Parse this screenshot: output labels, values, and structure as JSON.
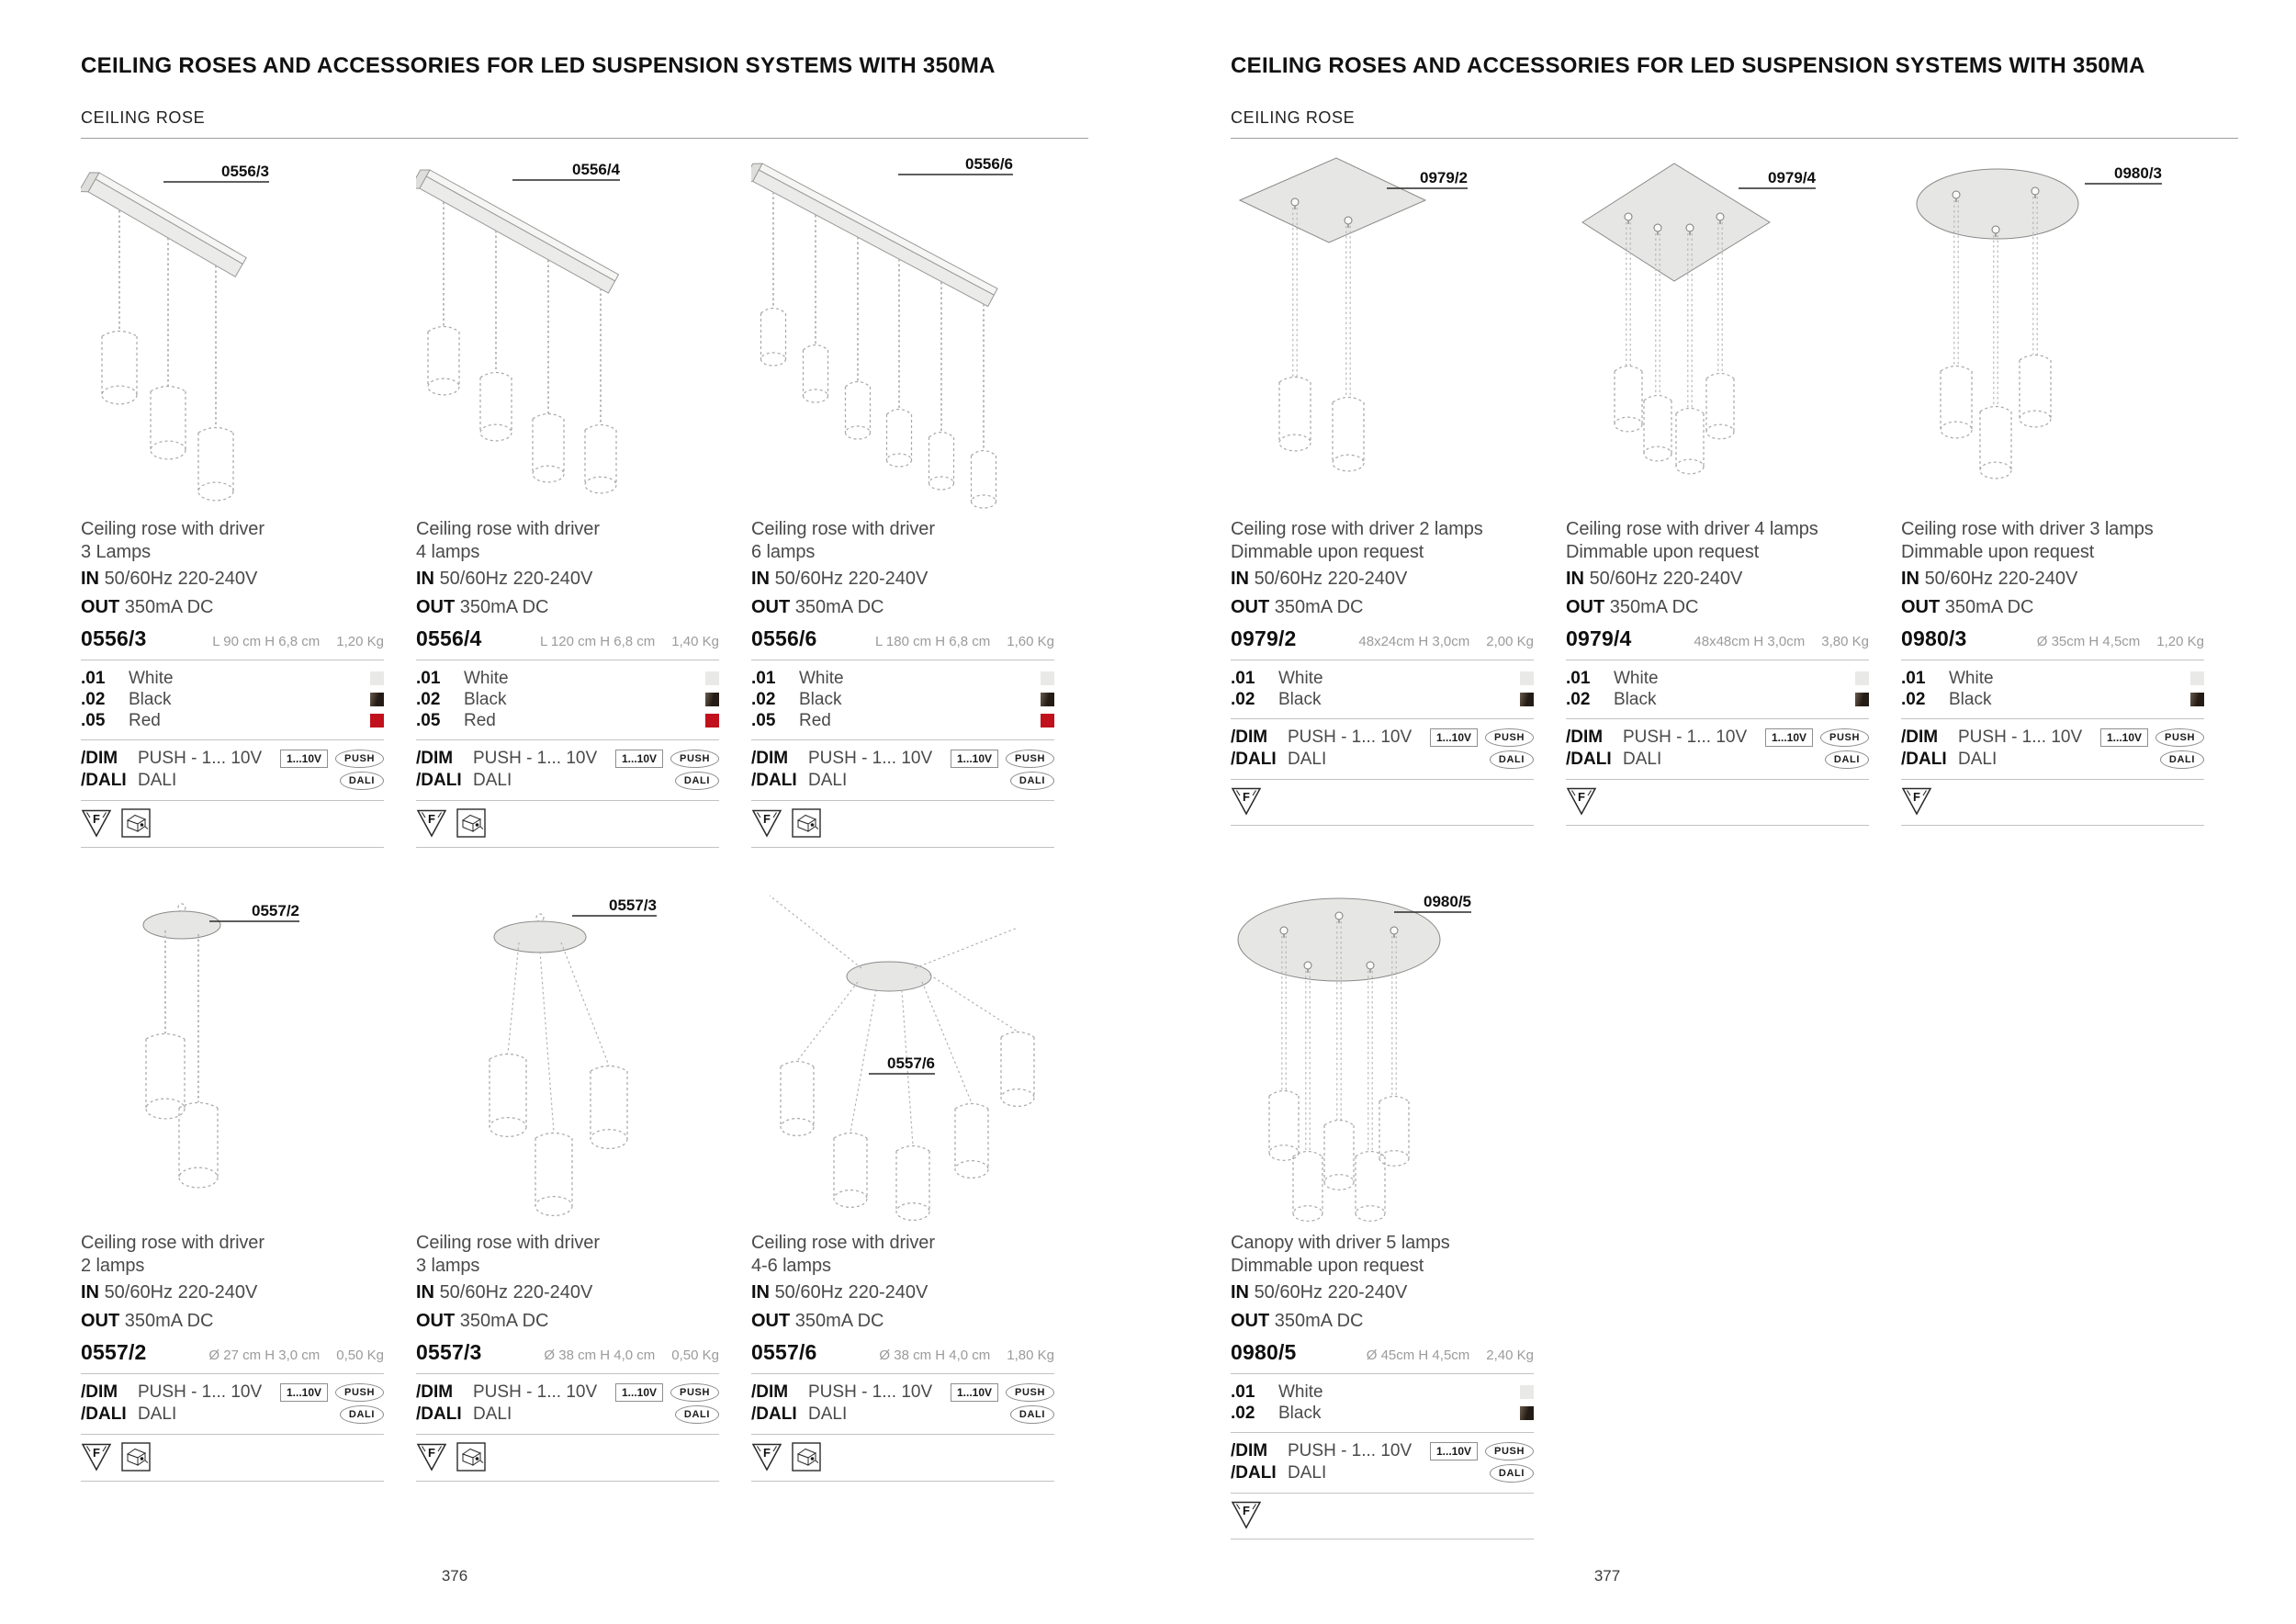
{
  "pages": [
    {
      "title": "CEILING ROSES AND ACCESSORIES FOR LED SUSPENSION SYSTEMS WITH 350MA",
      "section": "CEILING ROSE",
      "page_number": "376",
      "products": [
        {
          "code": "0556/3",
          "description": [
            "Ceiling rose with driver",
            "3 Lamps"
          ],
          "input": {
            "label": "IN",
            "value": "50/60Hz 220-240V"
          },
          "output": {
            "label": "OUT",
            "value": "350mA DC"
          },
          "dimensions": "L 90 cm H 6,8 cm",
          "weight": "1,20 Kg",
          "finishes": [
            {
              "code": ".01",
              "name": "White",
              "swatch": "#e9e9e7"
            },
            {
              "code": ".02",
              "name": "Black",
              "swatch": "#2b221b"
            },
            {
              "code": ".05",
              "name": "Red",
              "swatch": "#c1111d"
            }
          ],
          "options": [
            {
              "code": "/DIM",
              "name": "PUSH - 1... 10V",
              "badges": [
                "1...10V",
                "PUSH"
              ]
            },
            {
              "code": "/DALI",
              "name": "DALI",
              "badges": [
                "DALI"
              ]
            }
          ],
          "cert_icons": [
            "f-triangle",
            "driver-box"
          ],
          "illustration": "bar-3"
        },
        {
          "code": "0556/4",
          "description": [
            "Ceiling rose with driver",
            "4 lamps"
          ],
          "input": {
            "label": "IN",
            "value": "50/60Hz 220-240V"
          },
          "output": {
            "label": "OUT",
            "value": "350mA DC"
          },
          "dimensions": "L 120 cm H 6,8 cm",
          "weight": "1,40 Kg",
          "finishes": [
            {
              "code": ".01",
              "name": "White",
              "swatch": "#e9e9e7"
            },
            {
              "code": ".02",
              "name": "Black",
              "swatch": "#2b221b"
            },
            {
              "code": ".05",
              "name": "Red",
              "swatch": "#c1111d"
            }
          ],
          "options": [
            {
              "code": "/DIM",
              "name": "PUSH - 1... 10V",
              "badges": [
                "1...10V",
                "PUSH"
              ]
            },
            {
              "code": "/DALI",
              "name": "DALI",
              "badges": [
                "DALI"
              ]
            }
          ],
          "cert_icons": [
            "f-triangle",
            "driver-box"
          ],
          "illustration": "bar-4"
        },
        {
          "code": "0556/6",
          "description": [
            "Ceiling rose with driver",
            "6 lamps"
          ],
          "input": {
            "label": "IN",
            "value": "50/60Hz 220-240V"
          },
          "output": {
            "label": "OUT",
            "value": "350mA DC"
          },
          "dimensions": "L 180 cm H 6,8 cm",
          "weight": "1,60 Kg",
          "finishes": [
            {
              "code": ".01",
              "name": "White",
              "swatch": "#e9e9e7"
            },
            {
              "code": ".02",
              "name": "Black",
              "swatch": "#2b221b"
            },
            {
              "code": ".05",
              "name": "Red",
              "swatch": "#c1111d"
            }
          ],
          "options": [
            {
              "code": "/DIM",
              "name": "PUSH - 1... 10V",
              "badges": [
                "1...10V",
                "PUSH"
              ]
            },
            {
              "code": "/DALI",
              "name": "DALI",
              "badges": [
                "DALI"
              ]
            }
          ],
          "cert_icons": [
            "f-triangle",
            "driver-box"
          ],
          "illustration": "bar-6"
        },
        {
          "code": "0557/2",
          "description": [
            "Ceiling rose with driver",
            "2 lamps"
          ],
          "input": {
            "label": "IN",
            "value": "50/60Hz 220-240V"
          },
          "output": {
            "label": "OUT",
            "value": "350mA DC"
          },
          "dimensions": "Ø 27 cm H 3,0 cm",
          "weight": "0,50 Kg",
          "finishes": [],
          "options": [
            {
              "code": "/DIM",
              "name": "PUSH - 1... 10V",
              "badges": [
                "1...10V",
                "PUSH"
              ]
            },
            {
              "code": "/DALI",
              "name": "DALI",
              "badges": [
                "DALI"
              ]
            }
          ],
          "cert_icons": [
            "f-triangle",
            "driver-box"
          ],
          "illustration": "oval-2"
        },
        {
          "code": "0557/3",
          "description": [
            "Ceiling rose with driver",
            "3 lamps"
          ],
          "input": {
            "label": "IN",
            "value": "50/60Hz 220-240V"
          },
          "output": {
            "label": "OUT",
            "value": "350mA DC"
          },
          "dimensions": "Ø 38 cm H 4,0 cm",
          "weight": "0,50 Kg",
          "finishes": [],
          "options": [
            {
              "code": "/DIM",
              "name": "PUSH - 1... 10V",
              "badges": [
                "1...10V",
                "PUSH"
              ]
            },
            {
              "code": "/DALI",
              "name": "DALI",
              "badges": [
                "DALI"
              ]
            }
          ],
          "cert_icons": [
            "f-triangle",
            "driver-box"
          ],
          "illustration": "oval-3"
        },
        {
          "code": "0557/6",
          "description": [
            "Ceiling rose with driver",
            "4-6 lamps"
          ],
          "input": {
            "label": "IN",
            "value": "50/60Hz 220-240V"
          },
          "output": {
            "label": "OUT",
            "value": "350mA DC"
          },
          "dimensions": "Ø 38 cm H 4,0 cm",
          "weight": "1,80 Kg",
          "finishes": [],
          "options": [
            {
              "code": "/DIM",
              "name": "PUSH - 1... 10V",
              "badges": [
                "1...10V",
                "PUSH"
              ]
            },
            {
              "code": "/DALI",
              "name": "DALI",
              "badges": [
                "DALI"
              ]
            }
          ],
          "cert_icons": [
            "f-triangle",
            "driver-box"
          ],
          "illustration": "spider-6"
        }
      ]
    },
    {
      "title": "CEILING ROSES AND ACCESSORIES FOR LED SUSPENSION SYSTEMS WITH 350MA",
      "section": "CEILING ROSE",
      "page_number": "377",
      "products": [
        {
          "code": "0979/2",
          "description": [
            "Ceiling rose with driver 2 lamps",
            "Dimmable upon request"
          ],
          "input": {
            "label": "IN",
            "value": "50/60Hz 220-240V"
          },
          "output": {
            "label": "OUT",
            "value": "350mA DC"
          },
          "dimensions": "48x24cm H 3,0cm",
          "weight": "2,00 Kg",
          "finishes": [
            {
              "code": ".01",
              "name": "White",
              "swatch": "#e9e9e7"
            },
            {
              "code": ".02",
              "name": "Black",
              "swatch": "#2b221b"
            }
          ],
          "options": [
            {
              "code": "/DIM",
              "name": "PUSH - 1... 10V",
              "badges": [
                "1...10V",
                "PUSH"
              ]
            },
            {
              "code": "/DALI",
              "name": "DALI",
              "badges": [
                "DALI"
              ]
            }
          ],
          "cert_icons": [
            "f-triangle"
          ],
          "illustration": "plate-rect-2"
        },
        {
          "code": "0979/4",
          "description": [
            "Ceiling rose with driver 4 lamps",
            "Dimmable upon request"
          ],
          "input": {
            "label": "IN",
            "value": "50/60Hz 220-240V"
          },
          "output": {
            "label": "OUT",
            "value": "350mA DC"
          },
          "dimensions": "48x48cm H 3,0cm",
          "weight": "3,80 Kg",
          "finishes": [
            {
              "code": ".01",
              "name": "White",
              "swatch": "#e9e9e7"
            },
            {
              "code": ".02",
              "name": "Black",
              "swatch": "#2b221b"
            }
          ],
          "options": [
            {
              "code": "/DIM",
              "name": "PUSH - 1... 10V",
              "badges": [
                "1...10V",
                "PUSH"
              ]
            },
            {
              "code": "/DALI",
              "name": "DALI",
              "badges": [
                "DALI"
              ]
            }
          ],
          "cert_icons": [
            "f-triangle"
          ],
          "illustration": "plate-diamond-4"
        },
        {
          "code": "0980/3",
          "description": [
            "Ceiling rose with driver 3 lamps",
            "Dimmable upon request"
          ],
          "input": {
            "label": "IN",
            "value": "50/60Hz 220-240V"
          },
          "output": {
            "label": "OUT",
            "value": "350mA DC"
          },
          "dimensions": "Ø 35cm H 4,5cm",
          "weight": "1,20 Kg",
          "finishes": [
            {
              "code": ".01",
              "name": "White",
              "swatch": "#e9e9e7"
            },
            {
              "code": ".02",
              "name": "Black",
              "swatch": "#2b221b"
            }
          ],
          "options": [
            {
              "code": "/DIM",
              "name": "PUSH - 1... 10V",
              "badges": [
                "1...10V",
                "PUSH"
              ]
            },
            {
              "code": "/DALI",
              "name": "DALI",
              "badges": [
                "DALI"
              ]
            }
          ],
          "cert_icons": [
            "f-triangle"
          ],
          "illustration": "plate-round-3"
        },
        {
          "code": "0980/5",
          "description": [
            "Canopy with driver 5 lamps",
            "Dimmable upon request"
          ],
          "input": {
            "label": "IN",
            "value": "50/60Hz 220-240V"
          },
          "output": {
            "label": "OUT",
            "value": "350mA DC"
          },
          "dimensions": "Ø 45cm H 4,5cm",
          "weight": "2,40 Kg",
          "finishes": [
            {
              "code": ".01",
              "name": "White",
              "swatch": "#e9e9e7"
            },
            {
              "code": ".02",
              "name": "Black",
              "swatch": "#2b221b"
            }
          ],
          "options": [
            {
              "code": "/DIM",
              "name": "PUSH - 1... 10V",
              "badges": [
                "1...10V",
                "PUSH"
              ]
            },
            {
              "code": "/DALI",
              "name": "DALI",
              "badges": [
                "DALI"
              ]
            }
          ],
          "cert_icons": [
            "f-triangle"
          ],
          "illustration": "plate-round-5"
        }
      ]
    }
  ]
}
